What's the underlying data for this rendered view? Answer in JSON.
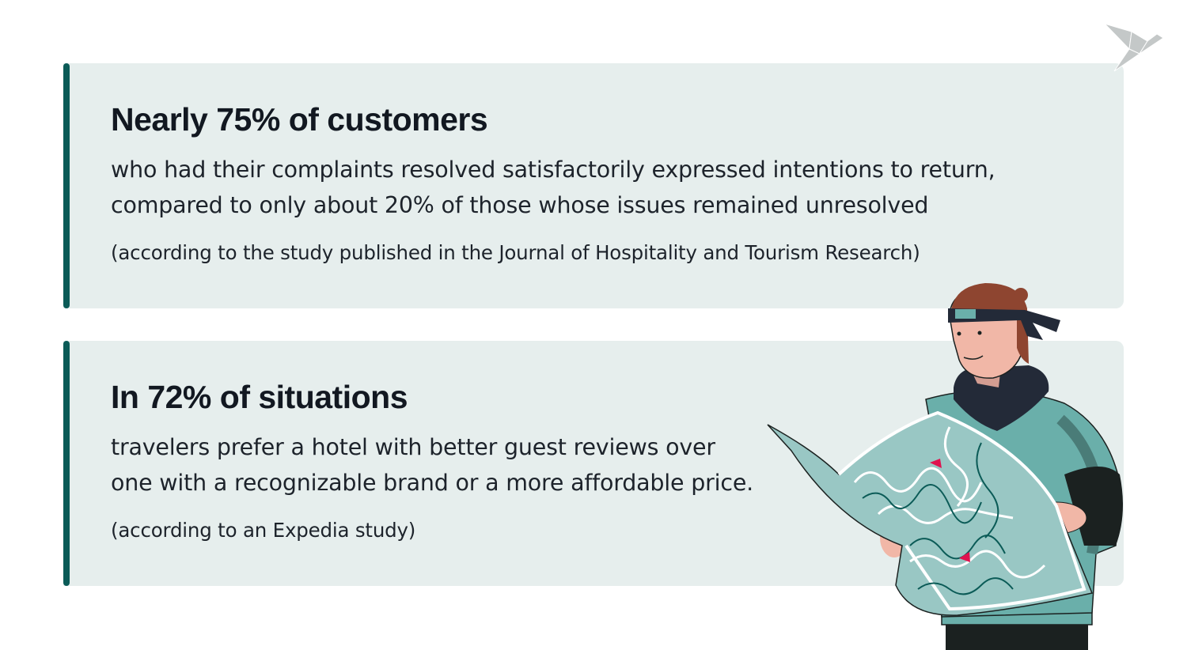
{
  "cards": [
    {
      "heading": "Nearly 75% of customers",
      "body_lines": [
        "who had their complaints resolved satisfactorily expressed intentions to return,",
        "compared to only about 20% of those whose issues remained unresolved"
      ],
      "source": "(according to the study published in the Journal of Hospitality and Tourism Research)"
    },
    {
      "heading": "In 72% of situations",
      "body_lines": [
        "travelers prefer a hotel with better guest reviews over",
        "one with a recognizable brand or a more affordable price."
      ],
      "source": "(according to an Expedia study)"
    }
  ],
  "colors": {
    "accent": "#0b5b57",
    "card_bg": "#e6eeed",
    "map": "#99c7c4",
    "shirt": "#6aafaa",
    "marker": "#e0134f",
    "logo": "#c4c8c8"
  },
  "icons": {
    "logo": "origami-bird-logo",
    "illustration": "traveler-reading-map"
  }
}
